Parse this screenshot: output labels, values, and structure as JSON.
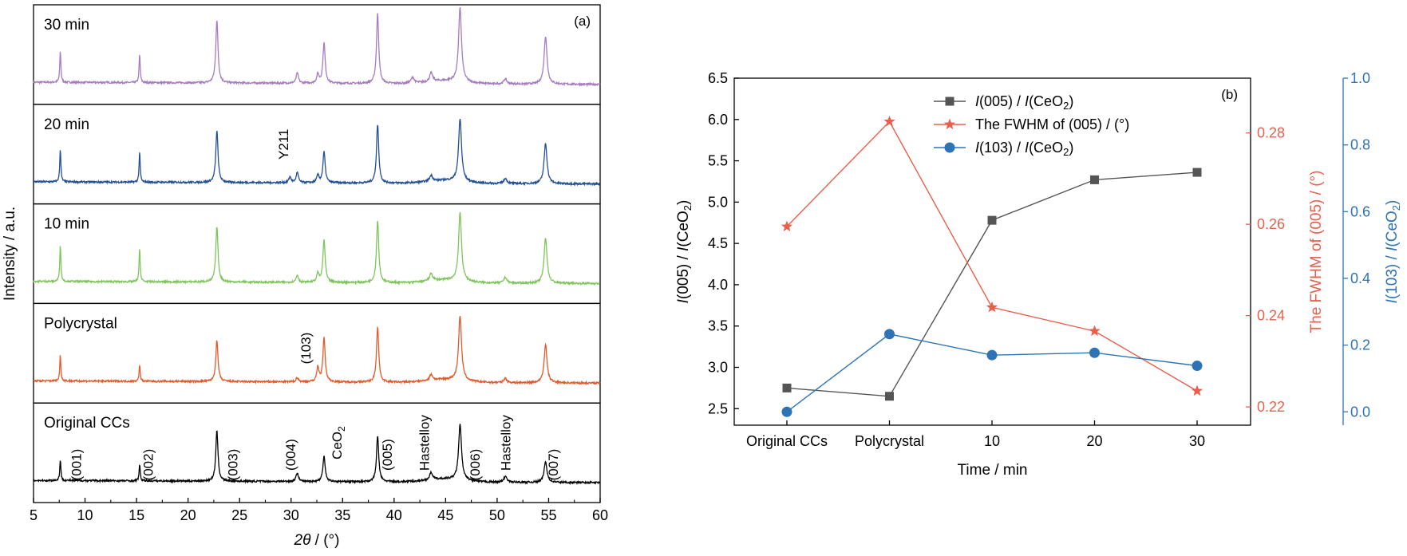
{
  "chart_data": [
    {
      "type": "line",
      "panel_label": "(a)",
      "xlabel": "2θ / (°)",
      "xlabel_parts": {
        "italic": "2θ",
        "rest": " / (°)"
      },
      "ylabel": "Intensity / a.u.",
      "xlim": [
        5,
        60
      ],
      "x_ticks": [
        "5",
        "10",
        "15",
        "20",
        "25",
        "30",
        "35",
        "40",
        "45",
        "50",
        "55",
        "60"
      ],
      "colors": {
        "30 min": "#a67bbf",
        "20 min": "#234f94",
        "10 min": "#7fc45c",
        "Polycrystal": "#e05a2b",
        "Original CCs": "#000000"
      },
      "series": [
        {
          "name": "30 min",
          "peaks": [
            [
              7.6,
              0.42
            ],
            [
              15.3,
              0.38
            ],
            [
              22.8,
              0.85
            ],
            [
              30.6,
              0.14
            ],
            [
              32.6,
              0.12
            ],
            [
              33.2,
              0.55
            ],
            [
              38.4,
              0.95
            ],
            [
              41.8,
              0.08
            ],
            [
              43.6,
              0.12
            ],
            [
              46.4,
              1.0
            ],
            [
              50.8,
              0.07
            ],
            [
              54.7,
              0.65
            ]
          ]
        },
        {
          "name": "20 min",
          "peaks": [
            [
              7.6,
              0.45
            ],
            [
              15.3,
              0.4
            ],
            [
              22.8,
              0.7
            ],
            [
              29.9,
              0.08
            ],
            [
              30.6,
              0.14
            ],
            [
              32.6,
              0.1
            ],
            [
              33.2,
              0.42
            ],
            [
              38.4,
              0.8
            ],
            [
              43.6,
              0.08
            ],
            [
              46.4,
              0.85
            ],
            [
              50.8,
              0.07
            ],
            [
              54.7,
              0.55
            ]
          ]
        },
        {
          "name": "10 min",
          "peaks": [
            [
              7.6,
              0.5
            ],
            [
              15.3,
              0.45
            ],
            [
              22.8,
              0.75
            ],
            [
              30.6,
              0.1
            ],
            [
              32.6,
              0.12
            ],
            [
              33.2,
              0.58
            ],
            [
              38.4,
              0.85
            ],
            [
              43.6,
              0.1
            ],
            [
              46.4,
              0.92
            ],
            [
              50.8,
              0.08
            ],
            [
              54.7,
              0.62
            ]
          ]
        },
        {
          "name": "Polycrystal",
          "peaks": [
            [
              7.6,
              0.35
            ],
            [
              15.3,
              0.22
            ],
            [
              22.8,
              0.55
            ],
            [
              30.6,
              0.06
            ],
            [
              32.6,
              0.2
            ],
            [
              33.2,
              0.6
            ],
            [
              38.4,
              0.75
            ],
            [
              43.6,
              0.08
            ],
            [
              46.4,
              0.88
            ],
            [
              50.8,
              0.06
            ],
            [
              54.7,
              0.52
            ]
          ]
        },
        {
          "name": "Original CCs",
          "peaks": [
            [
              7.6,
              0.28
            ],
            [
              15.3,
              0.22
            ],
            [
              22.8,
              0.68
            ],
            [
              30.6,
              0.12
            ],
            [
              33.2,
              0.35
            ],
            [
              38.4,
              0.62
            ],
            [
              43.6,
              0.1
            ],
            [
              46.4,
              0.75
            ],
            [
              50.8,
              0.08
            ],
            [
              54.7,
              0.28
            ]
          ]
        }
      ],
      "annotations": [
        {
          "panel": "Original CCs",
          "x": 9.6,
          "y_frac": 0.62,
          "text": "(001)"
        },
        {
          "panel": "Original CCs",
          "x": 16.6,
          "y_frac": 0.62,
          "text": "(002)"
        },
        {
          "panel": "Original CCs",
          "x": 24.8,
          "y_frac": 0.62,
          "text": "(003)"
        },
        {
          "panel": "Original CCs",
          "x": 30.4,
          "y_frac": 0.52,
          "text": "(004)"
        },
        {
          "panel": "Original CCs",
          "x": 34.9,
          "y_frac": 0.4,
          "text": "CeO",
          "sub": "2"
        },
        {
          "panel": "Original CCs",
          "x": 39.8,
          "y_frac": 0.52,
          "text": "(005)"
        },
        {
          "panel": "Original CCs",
          "x": 43.4,
          "y_frac": 0.4,
          "text": "Hastelloy"
        },
        {
          "panel": "Original CCs",
          "x": 48.3,
          "y_frac": 0.62,
          "text": "(006)"
        },
        {
          "panel": "Original CCs",
          "x": 51.3,
          "y_frac": 0.4,
          "text": "Hastelloy"
        },
        {
          "panel": "Original CCs",
          "x": 55.9,
          "y_frac": 0.62,
          "text": "(007)"
        },
        {
          "panel": "Polycrystal",
          "x": 31.9,
          "y_frac": 0.45,
          "text": "(103)"
        },
        {
          "panel": "20 min",
          "x": 29.7,
          "y_frac": 0.4,
          "text": "Y211"
        }
      ]
    },
    {
      "type": "line",
      "panel_label": "(b)",
      "xlabel": "Time / min",
      "categories": [
        "Original CCs",
        "Polycrystal",
        "10",
        "20",
        "30"
      ],
      "ylabel_left": {
        "pre_i": "I",
        "a": "(005) / ",
        "b_i": "I",
        "b": "(CeO",
        "sub": "2",
        "c": ")"
      },
      "ylabel_right1": "The FWHM of (005) / (°)",
      "ylabel_right2": {
        "pre_i": "I",
        "a": "(103) / ",
        "b_i": "I",
        "b": "(CeO",
        "sub": "2",
        "c": ")"
      },
      "ylim_left": [
        2.3,
        6.5
      ],
      "yticks_left": [
        "2.5",
        "3.0",
        "3.5",
        "4.0",
        "4.5",
        "5.0",
        "5.5",
        "6.0",
        "6.5"
      ],
      "ylim_right1": [
        0.216,
        0.292
      ],
      "yticks_right1": [
        "0.22",
        "0.24",
        "0.26",
        "0.28"
      ],
      "ylim_right2": [
        -0.04,
        1.0
      ],
      "yticks_right2": [
        "0.0",
        "0.2",
        "0.4",
        "0.6",
        "0.8",
        "1.0"
      ],
      "legend_position": "top-center",
      "series": [
        {
          "name_parts": {
            "i1": "I",
            "t1": "(005) / ",
            "i2": "I",
            "t2": "(CeO",
            "sub": "2",
            "t3": ")"
          },
          "axis": "left",
          "marker": "square",
          "color": "#555555",
          "values": [
            2.75,
            2.65,
            4.78,
            5.27,
            5.36
          ]
        },
        {
          "name": "The FWHM of (005) / (°)",
          "axis": "right1",
          "marker": "star",
          "color": "#e8604c",
          "values": [
            0.2595,
            0.2825,
            0.2418,
            0.2366,
            0.2235
          ]
        },
        {
          "name_parts": {
            "i1": "I",
            "t1": "(103) / ",
            "i2": "I",
            "t2": "(CeO",
            "sub": "2",
            "t3": ")"
          },
          "axis": "right2",
          "marker": "circle",
          "color": "#2e74b5",
          "values": [
            0.0,
            0.233,
            0.17,
            0.177,
            0.138
          ]
        }
      ],
      "colors": {
        "left_axis": "#000000",
        "right1_axis": "#e8604c",
        "right2_axis": "#2e74b5"
      }
    }
  ]
}
